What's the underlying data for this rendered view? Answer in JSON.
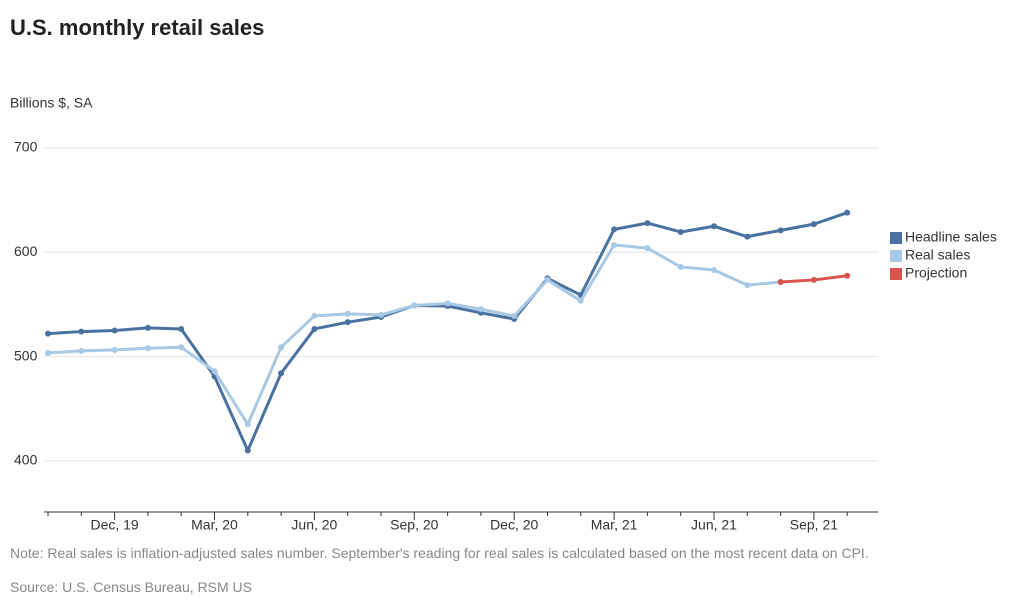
{
  "chart_data": {
    "type": "line",
    "title": "U.S. monthly retail sales",
    "subtitle": "Billions $, SA",
    "categories": [
      null,
      null,
      "Dec, 19",
      null,
      null,
      "Mar, 20",
      null,
      null,
      "Jun, 20",
      null,
      null,
      "Sep, 20",
      null,
      null,
      "Dec, 20",
      null,
      null,
      "Mar, 21",
      null,
      null,
      "Jun, 21",
      null,
      null,
      "Sep, 21",
      null
    ],
    "series": [
      {
        "name": "Headline sales",
        "color": "#4a72a0",
        "values": [
          522,
          524,
          525,
          527.5,
          526.5,
          481,
          410,
          484,
          526.5,
          533,
          538,
          549,
          548.5,
          542,
          536,
          575,
          559,
          622,
          628,
          619.5,
          625,
          615,
          621,
          627,
          638
        ]
      },
      {
        "name": "Real sales",
        "color": "#a8c8e4",
        "values": [
          503.5,
          505.5,
          506.5,
          508,
          509,
          486,
          435,
          509,
          539,
          541,
          540,
          549,
          551,
          545.5,
          539,
          573.5,
          553.5,
          607,
          604,
          586,
          583,
          568.5,
          571.5,
          null,
          null
        ]
      },
      {
        "name": "Projection",
        "color": "#d9534f",
        "values": [
          null,
          null,
          null,
          null,
          null,
          null,
          null,
          null,
          null,
          null,
          null,
          null,
          null,
          null,
          null,
          null,
          null,
          null,
          null,
          null,
          null,
          null,
          571.5,
          573.5,
          577.5
        ]
      }
    ],
    "ylim": [
      351,
      700
    ],
    "yticks": [
      400,
      500,
      600,
      700
    ],
    "grid": true,
    "legend": "right",
    "note": "Note: Real sales is inflation-adjusted sales number. September's reading for real sales is calculated based on the most recent data on CPI.",
    "source": "Source: U.S. Census Bureau, RSM US"
  }
}
